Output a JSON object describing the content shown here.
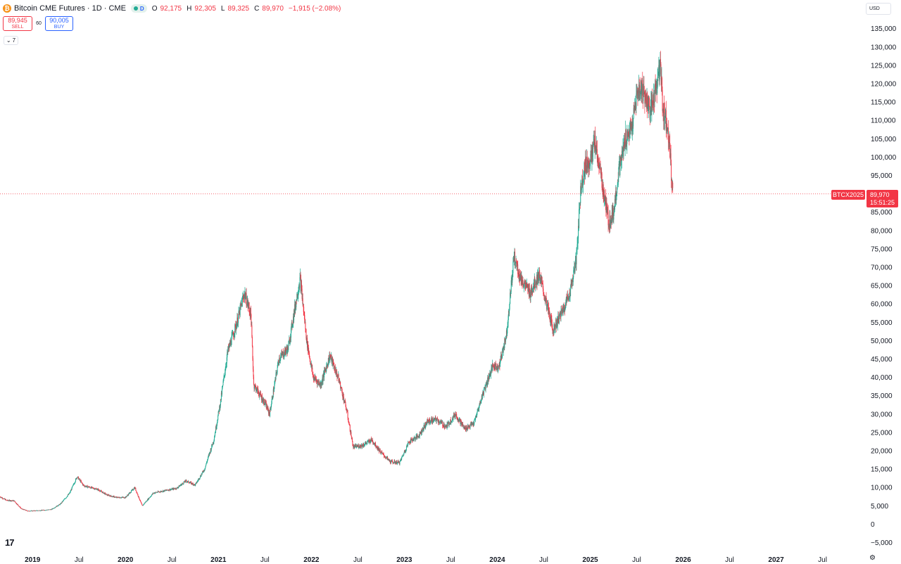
{
  "header": {
    "symbol_icon": "bitcoin-icon",
    "title": "Bitcoin CME Futures · 1D · CME",
    "status_letter": "D",
    "open_label": "O",
    "open": "92,175",
    "high_label": "H",
    "high": "92,305",
    "low_label": "L",
    "low": "89,325",
    "close_label": "C",
    "close": "89,970",
    "change": "−1,915 (−2.08%)"
  },
  "trade": {
    "sell_price": "89,945",
    "sell_label": "SELL",
    "spread": "60",
    "buy_price": "90,005",
    "buy_label": "BUY"
  },
  "indicators_toggle": {
    "count": "7",
    "icon": "chevron-down-icon"
  },
  "currency_button": "USD",
  "price_tag": {
    "symbol": "BTCX2025",
    "price": "89,970",
    "countdown": "15:51:25"
  },
  "colors": {
    "up": "#22ab94",
    "down": "#f23645",
    "text": "#131722",
    "price_line": "#f23645"
  },
  "chart_data": {
    "type": "candlestick",
    "title": "Bitcoin CME Futures",
    "interval": "1D",
    "ylim": [
      -7000,
      138000
    ],
    "yticks": [
      -5000,
      0,
      5000,
      10000,
      15000,
      20000,
      25000,
      30000,
      35000,
      40000,
      45000,
      50000,
      55000,
      60000,
      65000,
      70000,
      75000,
      80000,
      85000,
      90000,
      95000,
      100000,
      105000,
      110000,
      115000,
      120000,
      125000,
      130000,
      135000
    ],
    "ytick_labels": [
      "−5,000",
      "0",
      "5,000",
      "10,000",
      "15,000",
      "20,000",
      "25,000",
      "30,000",
      "35,000",
      "40,000",
      "45,000",
      "50,000",
      "55,000",
      "60,000",
      "65,000",
      "70,000",
      "75,000",
      "80,000",
      "85,000",
      "90,000",
      "95,000",
      "100,000",
      "105,000",
      "110,000",
      "115,000",
      "120,000",
      "125,000",
      "130,000",
      "135,000"
    ],
    "xlim": [
      2018.65,
      2027.95
    ],
    "xticks": [
      2019.0,
      2019.5,
      2020.0,
      2020.5,
      2021.0,
      2021.5,
      2022.0,
      2022.5,
      2023.0,
      2023.5,
      2024.0,
      2024.5,
      2025.0,
      2025.5,
      2026.0,
      2026.5,
      2027.0,
      2027.5
    ],
    "xtick_labels": [
      "2019",
      "Jul",
      "2020",
      "Jul",
      "2021",
      "Jul",
      "2022",
      "Jul",
      "2023",
      "Jul",
      "2024",
      "Jul",
      "2025",
      "Jul",
      "2026",
      "Jul",
      "2027",
      "Jul"
    ],
    "xtick_bold": [
      true,
      false,
      true,
      false,
      true,
      false,
      true,
      false,
      true,
      false,
      true,
      false,
      true,
      false,
      true,
      false,
      true,
      false
    ],
    "last_price": 89970,
    "price_path": [
      [
        2018.65,
        7500
      ],
      [
        2018.72,
        6500
      ],
      [
        2018.8,
        6400
      ],
      [
        2018.88,
        4200
      ],
      [
        2018.95,
        3600
      ],
      [
        2019.05,
        3700
      ],
      [
        2019.2,
        4000
      ],
      [
        2019.3,
        5500
      ],
      [
        2019.4,
        8500
      ],
      [
        2019.48,
        13000
      ],
      [
        2019.55,
        10500
      ],
      [
        2019.7,
        9500
      ],
      [
        2019.8,
        8000
      ],
      [
        2019.9,
        7300
      ],
      [
        2020.0,
        7300
      ],
      [
        2020.1,
        10000
      ],
      [
        2020.18,
        5000
      ],
      [
        2020.3,
        8500
      ],
      [
        2020.45,
        9300
      ],
      [
        2020.55,
        9800
      ],
      [
        2020.65,
        11800
      ],
      [
        2020.75,
        10700
      ],
      [
        2020.85,
        15000
      ],
      [
        2020.95,
        23000
      ],
      [
        2021.02,
        33000
      ],
      [
        2021.1,
        47000
      ],
      [
        2021.2,
        55000
      ],
      [
        2021.28,
        63000
      ],
      [
        2021.35,
        57000
      ],
      [
        2021.38,
        38000
      ],
      [
        2021.5,
        33000
      ],
      [
        2021.55,
        30000
      ],
      [
        2021.65,
        45000
      ],
      [
        2021.75,
        48000
      ],
      [
        2021.85,
        63000
      ],
      [
        2021.88,
        67000
      ],
      [
        2021.95,
        50000
      ],
      [
        2022.02,
        40000
      ],
      [
        2022.1,
        38000
      ],
      [
        2022.2,
        46000
      ],
      [
        2022.3,
        39000
      ],
      [
        2022.38,
        31000
      ],
      [
        2022.45,
        21000
      ],
      [
        2022.55,
        21500
      ],
      [
        2022.65,
        23000
      ],
      [
        2022.75,
        19500
      ],
      [
        2022.85,
        17000
      ],
      [
        2022.95,
        16800
      ],
      [
        2023.05,
        22500
      ],
      [
        2023.15,
        24000
      ],
      [
        2023.25,
        28000
      ],
      [
        2023.35,
        28500
      ],
      [
        2023.45,
        26500
      ],
      [
        2023.55,
        30000
      ],
      [
        2023.65,
        26000
      ],
      [
        2023.75,
        27500
      ],
      [
        2023.85,
        36000
      ],
      [
        2023.95,
        43000
      ],
      [
        2024.02,
        43000
      ],
      [
        2024.1,
        52000
      ],
      [
        2024.18,
        73000
      ],
      [
        2024.25,
        67000
      ],
      [
        2024.35,
        63000
      ],
      [
        2024.45,
        68000
      ],
      [
        2024.55,
        58000
      ],
      [
        2024.6,
        53000
      ],
      [
        2024.7,
        58000
      ],
      [
        2024.78,
        63000
      ],
      [
        2024.85,
        72000
      ],
      [
        2024.9,
        92000
      ],
      [
        2024.95,
        98000
      ],
      [
        2025.0,
        99000
      ],
      [
        2025.05,
        104000
      ],
      [
        2025.1,
        97000
      ],
      [
        2025.2,
        82000
      ],
      [
        2025.25,
        85000
      ],
      [
        2025.3,
        95000
      ],
      [
        2025.38,
        105000
      ],
      [
        2025.45,
        108000
      ],
      [
        2025.5,
        117000
      ],
      [
        2025.55,
        119000
      ],
      [
        2025.6,
        116000
      ],
      [
        2025.65,
        112000
      ],
      [
        2025.7,
        118000
      ],
      [
        2025.76,
        125000
      ],
      [
        2025.78,
        113000
      ],
      [
        2025.82,
        110000
      ],
      [
        2025.85,
        105000
      ],
      [
        2025.88,
        92000
      ],
      [
        2025.89,
        89970
      ]
    ]
  }
}
